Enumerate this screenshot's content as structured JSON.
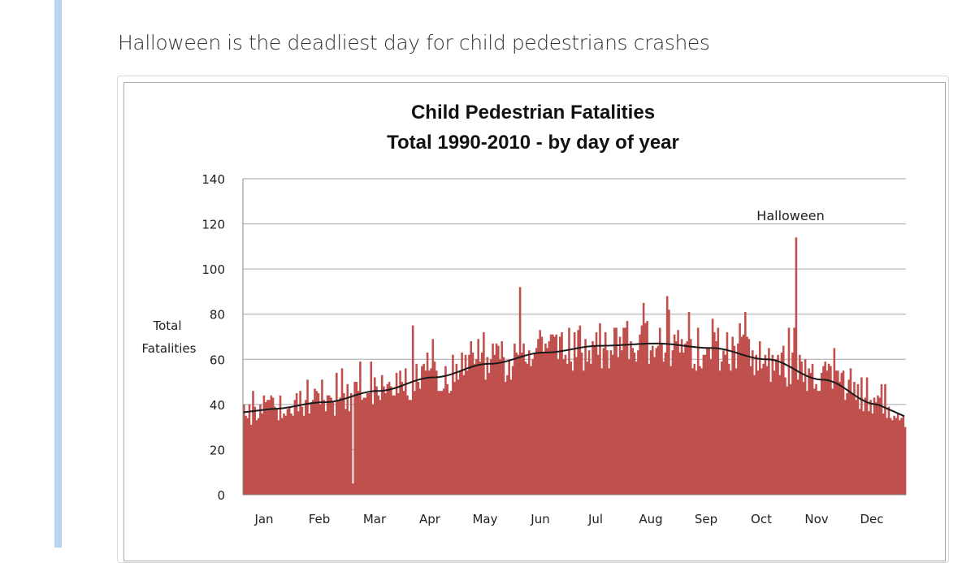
{
  "post": {
    "text": "Halloween is the deadliest day for child pedestrians crashes"
  },
  "colors": {
    "bar": "#c0504d",
    "trend": "#1a1a1a",
    "grid": "#a6a6a6",
    "accent": "#b8d4ee"
  },
  "chart_data": {
    "type": "bar",
    "title": "Child Pedestrian Fatalities",
    "subtitle": "Total 1990-2010 - by day of year",
    "ylabel_line1": "Total",
    "ylabel_line2": "Fatalities",
    "ylim": [
      0,
      140
    ],
    "yticks": [
      0,
      20,
      40,
      60,
      80,
      100,
      120,
      140
    ],
    "grid": true,
    "months": [
      "Jan",
      "Feb",
      "Mar",
      "Apr",
      "May",
      "Jun",
      "Jul",
      "Aug",
      "Sep",
      "Oct",
      "Nov",
      "Dec"
    ],
    "month_days": [
      31,
      28,
      31,
      30,
      31,
      30,
      31,
      31,
      30,
      31,
      30,
      31
    ],
    "annotation": {
      "label": "Halloween",
      "day": 304,
      "value": 114
    },
    "notable_days": [
      {
        "day": 60,
        "value": 5
      },
      {
        "day": 93,
        "value": 75
      },
      {
        "day": 152,
        "value": 92
      },
      {
        "day": 220,
        "value": 85
      },
      {
        "day": 304,
        "value": 114
      }
    ],
    "trend_monthly": [
      {
        "month": "Jan",
        "value": 38
      },
      {
        "month": "Feb",
        "value": 41
      },
      {
        "month": "Mar",
        "value": 46
      },
      {
        "month": "Apr",
        "value": 52
      },
      {
        "month": "May",
        "value": 58
      },
      {
        "month": "Jun",
        "value": 63
      },
      {
        "month": "Jul",
        "value": 66
      },
      {
        "month": "Aug",
        "value": 67
      },
      {
        "month": "Sep",
        "value": 65
      },
      {
        "month": "Oct",
        "value": 60
      },
      {
        "month": "Nov",
        "value": 51
      },
      {
        "month": "Dec",
        "value": 40
      }
    ]
  }
}
